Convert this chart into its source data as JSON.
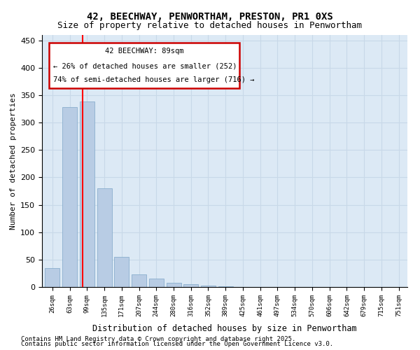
{
  "title_line1": "42, BEECHWAY, PENWORTHAM, PRESTON, PR1 0XS",
  "title_line2": "Size of property relative to detached houses in Penwortham",
  "xlabel": "Distribution of detached houses by size in Penwortham",
  "ylabel": "Number of detached properties",
  "categories": [
    "26sqm",
    "63sqm",
    "99sqm",
    "135sqm",
    "171sqm",
    "207sqm",
    "244sqm",
    "280sqm",
    "316sqm",
    "352sqm",
    "389sqm",
    "425sqm",
    "461sqm",
    "497sqm",
    "534sqm",
    "570sqm",
    "606sqm",
    "642sqm",
    "679sqm",
    "715sqm",
    "751sqm"
  ],
  "values": [
    35,
    328,
    338,
    180,
    55,
    23,
    15,
    8,
    5,
    2,
    1,
    0,
    0,
    0,
    0,
    0,
    0,
    0,
    0,
    0,
    0
  ],
  "bar_color": "#b8cce4",
  "bar_edge_color": "#7da6c8",
  "grid_color": "#c8d8e8",
  "background_color": "#dce9f5",
  "red_line_x": 1.73,
  "annotation_title": "42 BEECHWAY: 89sqm",
  "annotation_line2": "← 26% of detached houses are smaller (252)",
  "annotation_line3": "74% of semi-detached houses are larger (716) →",
  "annotation_box_color": "#cc0000",
  "ylim": [
    0,
    460
  ],
  "yticks": [
    0,
    50,
    100,
    150,
    200,
    250,
    300,
    350,
    400,
    450
  ],
  "footer_line1": "Contains HM Land Registry data © Crown copyright and database right 2025.",
  "footer_line2": "Contains public sector information licensed under the Open Government Licence v3.0."
}
